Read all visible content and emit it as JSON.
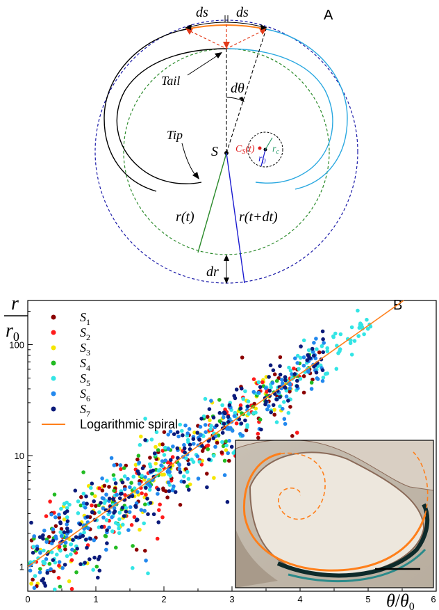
{
  "panel_a": {
    "panel_label": "A",
    "labels": {
      "ds_left": "ds",
      "ds_right": "ds",
      "tail": "Tail",
      "dtheta": "dθ",
      "tip": "Tip",
      "center": "S",
      "cs": "C",
      "cs_sub": "S",
      "cs_suffix": "(t)",
      "rc": "r",
      "rc_sub": "c",
      "r0": "r",
      "r0_sub": "0",
      "r_t": "r(t)",
      "r_tdt": "r(t+dt)",
      "dr": "dr"
    },
    "colors": {
      "outer_circle": "#1a1aa8",
      "inner_circle": "#2a8a2a",
      "tangent": "#e23a1a",
      "arc": "#ff7f1a",
      "spiral_black": "#000000",
      "spiral_cyan": "#2aa8e0",
      "r_green": "#2a8a2a",
      "r_blue": "#1a1ad0",
      "cs_red": "#e01a1a",
      "rc_green": "#2a9a6a"
    }
  },
  "panel_b": {
    "panel_label": "B",
    "ylabel_num": "r",
    "ylabel_den": "r",
    "ylabel_den_sub": "0",
    "xlabel_num": "θ",
    "xlabel_den": "θ",
    "xlabel_den_sub": "0",
    "legend_fit_label": "Logarithmic spiral"
  },
  "chart_data": {
    "type": "scatter",
    "title": "",
    "xlabel": "θ/θ0",
    "ylabel": "r/r0",
    "xlim": [
      0,
      6
    ],
    "ylim": [
      0.6,
      250
    ],
    "y_scale": "log",
    "x_ticks": [
      0,
      1,
      2,
      3,
      4,
      5,
      6
    ],
    "y_ticks": [
      1,
      10,
      100
    ],
    "grid": false,
    "legend_position": "top-left",
    "series": [
      {
        "name": "S1",
        "label_main": "S",
        "label_sub": "1",
        "color": "#8b0000",
        "x_max": 4.3
      },
      {
        "name": "S2",
        "label_main": "S",
        "label_sub": "2",
        "color": "#ff1a1a",
        "x_max": 4.0
      },
      {
        "name": "S3",
        "label_main": "S",
        "label_sub": "3",
        "color": "#f5e600",
        "x_max": 3.9
      },
      {
        "name": "S4",
        "label_main": "S",
        "label_sub": "4",
        "color": "#22bb22",
        "x_max": 4.3
      },
      {
        "name": "S5",
        "label_main": "S",
        "label_sub": "5",
        "color": "#33e5e5",
        "x_max": 5.05
      },
      {
        "name": "S6",
        "label_main": "S",
        "label_sub": "6",
        "color": "#2288ee",
        "x_max": 4.35
      },
      {
        "name": "S7",
        "label_main": "S",
        "label_sub": "7",
        "color": "#0a1a7a",
        "x_max": 4.35
      }
    ],
    "fit": {
      "name": "Logarithmic spiral",
      "model": "r/r0 = exp(θ/θ0)",
      "color": "#ff7f1a",
      "x_range": [
        0,
        6
      ]
    }
  }
}
